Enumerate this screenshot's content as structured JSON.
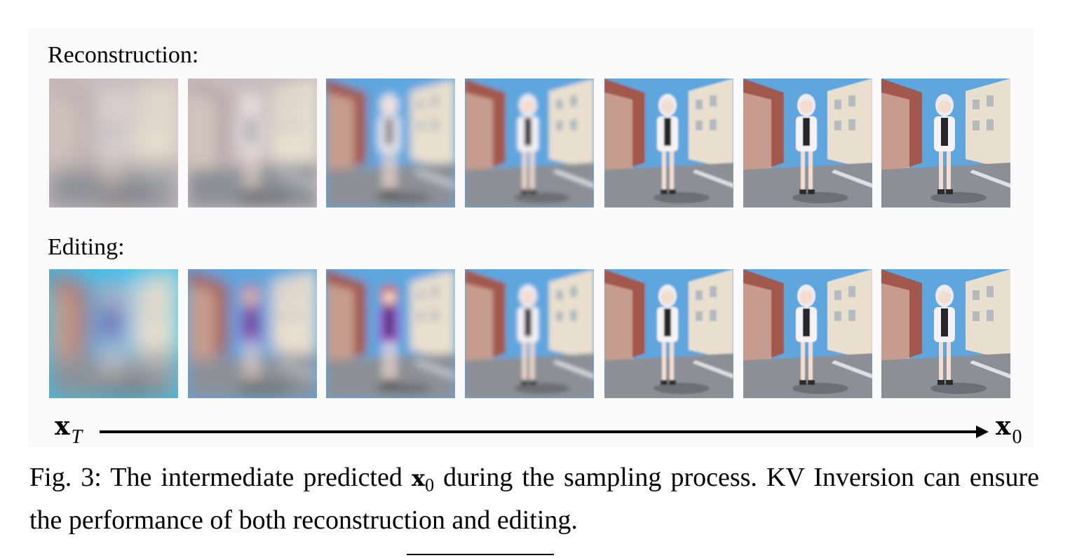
{
  "figure": {
    "rows": [
      {
        "label": "Reconstruction:",
        "frame_count": 7
      },
      {
        "label": "Editing:",
        "frame_count": 7
      }
    ],
    "axis": {
      "start_label": "x",
      "start_subscript": "T",
      "end_label": "x",
      "end_subscript": "0"
    }
  },
  "caption": {
    "prefix": "Fig. 3: The intermediate predicted ",
    "symbol": "x",
    "symbol_subscript": "0",
    "suffix": " during the sampling process. KV Inversion can ensure the performance of both reconstruction and editing."
  },
  "colors": {
    "sky": "#5fa6de",
    "building_light": "#e9dfcf",
    "building_brick": "#a2584c",
    "road": "#8c9096",
    "coat_white": "#f4f2f4",
    "hoodie_purple": "#9a5ad0",
    "hair_red": "#c8452f"
  }
}
